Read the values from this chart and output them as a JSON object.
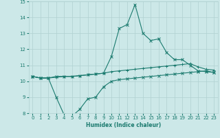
{
  "xlabel": "Humidex (Indice chaleur)",
  "x": [
    0,
    1,
    2,
    3,
    4,
    5,
    6,
    7,
    8,
    9,
    10,
    11,
    12,
    13,
    14,
    15,
    16,
    17,
    18,
    19,
    20,
    21,
    22,
    23
  ],
  "curve_max": [
    10.3,
    10.2,
    10.2,
    10.3,
    10.3,
    10.3,
    10.35,
    10.4,
    10.45,
    10.5,
    11.55,
    13.3,
    13.55,
    14.8,
    13.0,
    12.55,
    12.65,
    11.8,
    11.35,
    11.35,
    11.0,
    10.65,
    10.6,
    10.55
  ],
  "curve_mean": [
    10.3,
    10.2,
    10.2,
    10.25,
    10.3,
    10.3,
    10.35,
    10.4,
    10.45,
    10.5,
    10.6,
    10.65,
    10.7,
    10.75,
    10.8,
    10.85,
    10.9,
    10.95,
    11.0,
    11.05,
    11.1,
    10.9,
    10.75,
    10.7
  ],
  "curve_min": [
    10.3,
    10.2,
    10.2,
    9.0,
    7.9,
    7.8,
    8.25,
    8.9,
    9.0,
    9.65,
    10.0,
    10.1,
    10.15,
    10.2,
    10.25,
    10.3,
    10.35,
    10.4,
    10.45,
    10.5,
    10.55,
    10.6,
    10.65,
    10.55
  ],
  "color": "#1a7a6e",
  "bg_color": "#cce8e8",
  "grid_color": "#b0d0d0",
  "ylim": [
    8,
    15
  ],
  "yticks": [
    8,
    9,
    10,
    11,
    12,
    13,
    14,
    15
  ],
  "xlim": [
    -0.5,
    23.5
  ],
  "xticks": [
    0,
    1,
    2,
    3,
    4,
    5,
    6,
    7,
    8,
    9,
    10,
    11,
    12,
    13,
    14,
    15,
    16,
    17,
    18,
    19,
    20,
    21,
    22,
    23
  ]
}
